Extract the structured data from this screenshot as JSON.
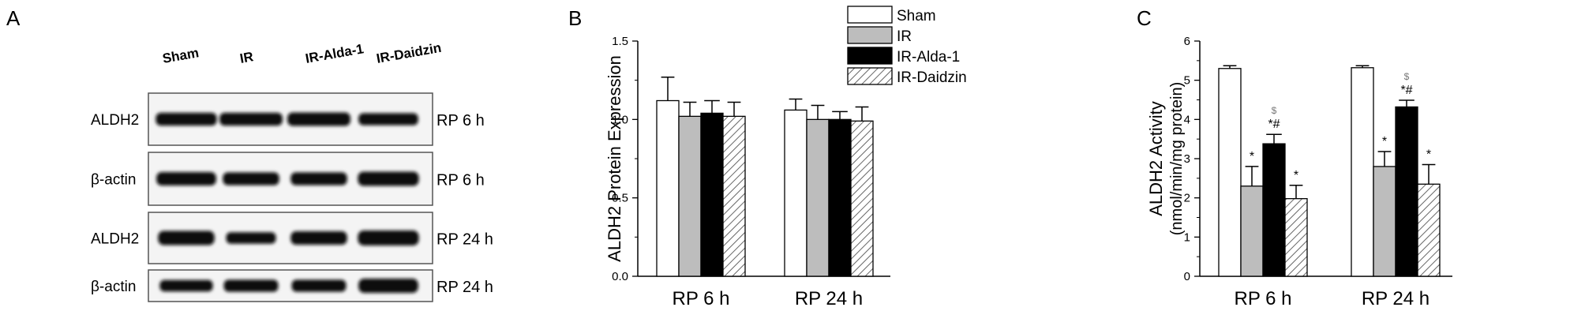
{
  "panels": {
    "a": {
      "letter": "A",
      "lanes": [
        "Sham",
        "IR",
        "IR-Alda-1",
        "IR-Daidzin"
      ],
      "blots": [
        {
          "protein": "ALDH2",
          "timepoint": "RP 6 h",
          "bands": [
            {
              "w": 0.92,
              "h": 0.9,
              "d": 0.95
            },
            {
              "w": 0.95,
              "h": 0.9,
              "d": 0.95
            },
            {
              "w": 0.95,
              "h": 0.95,
              "d": 0.97
            },
            {
              "w": 0.9,
              "h": 0.85,
              "d": 0.93
            }
          ]
        },
        {
          "protein": "β-actin",
          "timepoint": "RP 6 h",
          "bands": [
            {
              "w": 0.9,
              "h": 0.95,
              "d": 0.97
            },
            {
              "w": 0.85,
              "h": 0.9,
              "d": 0.95
            },
            {
              "w": 0.85,
              "h": 0.9,
              "d": 0.95
            },
            {
              "w": 0.92,
              "h": 1.0,
              "d": 0.97
            }
          ]
        },
        {
          "protein": "ALDH2",
          "timepoint": "RP 24 h",
          "bands": [
            {
              "w": 0.85,
              "h": 1.0,
              "d": 0.98
            },
            {
              "w": 0.75,
              "h": 0.8,
              "d": 0.95
            },
            {
              "w": 0.85,
              "h": 0.95,
              "d": 0.97
            },
            {
              "w": 0.92,
              "h": 1.05,
              "d": 0.98
            }
          ]
        },
        {
          "protein": "β-actin",
          "timepoint": "RP 24 h",
          "bands": [
            {
              "w": 0.8,
              "h": 0.8,
              "d": 0.9
            },
            {
              "w": 0.82,
              "h": 0.85,
              "d": 0.93
            },
            {
              "w": 0.82,
              "h": 0.85,
              "d": 0.93
            },
            {
              "w": 0.9,
              "h": 1.0,
              "d": 0.97
            }
          ]
        }
      ]
    },
    "b": {
      "letter": "B",
      "legend": [
        {
          "label": "Sham",
          "fill": "#ffffff",
          "pattern": "none"
        },
        {
          "label": "IR",
          "fill": "#bdbdbd",
          "pattern": "none"
        },
        {
          "label": "IR-Alda-1",
          "fill": "#000000",
          "pattern": "none"
        },
        {
          "label": "IR-Daidzin",
          "fill": "#ffffff",
          "pattern": "hatch"
        }
      ]
    },
    "c": {
      "letter": "C"
    }
  },
  "chart_data": [
    {
      "type": "bar",
      "ylabel": "ALDH2 Protein Expression",
      "ylim": [
        0,
        1.5
      ],
      "yticks": [
        "0.0",
        "0.5",
        "1.0",
        "1.5"
      ],
      "ytick_values": [
        0,
        0.5,
        1.0,
        1.5
      ],
      "categories": [
        "RP 6 h",
        "RP 24 h"
      ],
      "series": [
        {
          "name": "Sham",
          "values": [
            1.12,
            1.06
          ],
          "errors": [
            0.15,
            0.07
          ],
          "fill": "#ffffff",
          "pattern": "none"
        },
        {
          "name": "IR",
          "values": [
            1.02,
            1.0
          ],
          "errors": [
            0.09,
            0.09
          ],
          "fill": "#bdbdbd",
          "pattern": "none"
        },
        {
          "name": "IR-Alda-1",
          "values": [
            1.04,
            1.0
          ],
          "errors": [
            0.08,
            0.05
          ],
          "fill": "#000000",
          "pattern": "none"
        },
        {
          "name": "IR-Daidzin",
          "values": [
            1.02,
            0.99
          ],
          "errors": [
            0.09,
            0.09
          ],
          "fill": "#ffffff",
          "pattern": "hatch"
        }
      ],
      "annotations": [],
      "legend": "top-right"
    },
    {
      "type": "bar",
      "ylabel": "ALDH2 Activity",
      "ylabel2": "(nmol/min/mg protein)",
      "ylim": [
        0,
        6
      ],
      "yticks": [
        "0",
        "1",
        "2",
        "3",
        "4",
        "5",
        "6"
      ],
      "ytick_values": [
        0,
        1,
        2,
        3,
        4,
        5,
        6
      ],
      "categories": [
        "RP 6 h",
        "RP 24 h"
      ],
      "series": [
        {
          "name": "Sham",
          "values": [
            5.3,
            5.32
          ],
          "errors": [
            0.07,
            0.05
          ],
          "fill": "#ffffff",
          "pattern": "none"
        },
        {
          "name": "IR",
          "values": [
            2.3,
            2.8
          ],
          "errors": [
            0.5,
            0.38
          ],
          "fill": "#bdbdbd",
          "pattern": "none"
        },
        {
          "name": "IR-Alda-1",
          "values": [
            3.38,
            4.32
          ],
          "errors": [
            0.24,
            0.17
          ],
          "fill": "#000000",
          "pattern": "none"
        },
        {
          "name": "IR-Daidzin",
          "values": [
            1.98,
            2.35
          ],
          "errors": [
            0.34,
            0.5
          ],
          "fill": "#ffffff",
          "pattern": "hatch"
        }
      ],
      "annotations": [
        {
          "category": 0,
          "series": 1,
          "marks": [
            "*"
          ]
        },
        {
          "category": 0,
          "series": 2,
          "marks": [
            "*#",
            "$"
          ]
        },
        {
          "category": 0,
          "series": 3,
          "marks": [
            "*"
          ]
        },
        {
          "category": 1,
          "series": 1,
          "marks": [
            "*"
          ]
        },
        {
          "category": 1,
          "series": 2,
          "marks": [
            "*#",
            "$"
          ]
        },
        {
          "category": 1,
          "series": 3,
          "marks": [
            "*"
          ]
        }
      ]
    }
  ]
}
